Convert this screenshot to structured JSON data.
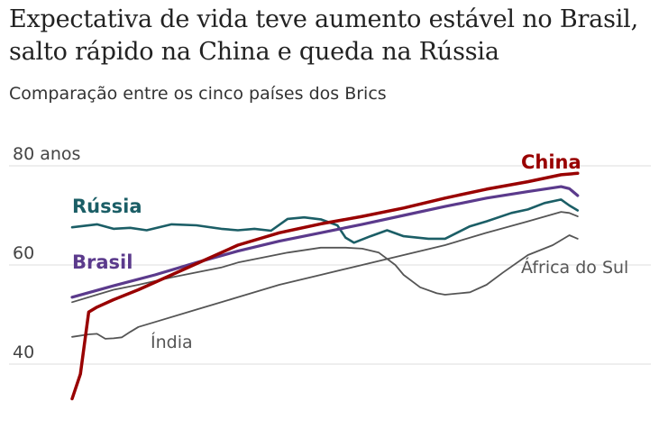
{
  "title": "Expectativa de vida teve aumento estável no Brasil, salto rápido na China e queda na Rússia",
  "subtitle": "Comparação entre os cinco países dos Brics",
  "chart_data": {
    "type": "line",
    "title": "Expectativa de vida teve aumento estável no Brasil, salto rápido na China e queda na Rússia",
    "subtitle": "Comparação entre os cinco países dos Brics",
    "ylim": [
      30,
      82
    ],
    "xlim": [
      1960,
      2022
    ],
    "yticks": [
      {
        "value": 80,
        "label": "80 anos"
      },
      {
        "value": 60,
        "label": "60"
      },
      {
        "value": 40,
        "label": "40"
      }
    ],
    "grid": true,
    "legend": "inline labels",
    "series": [
      {
        "name": "China",
        "color": "#990000",
        "width": 3.5,
        "x": [
          1960,
          1961,
          1962,
          1963,
          1965,
          1968,
          1972,
          1976,
          1980,
          1985,
          1990,
          1995,
          2000,
          2005,
          2010,
          2015,
          2019,
          2021
        ],
        "y": [
          33,
          38,
          50.5,
          51.5,
          53,
          55,
          58,
          61,
          64,
          66.5,
          68.3,
          69.8,
          71.5,
          73.5,
          75.3,
          76.8,
          78.2,
          78.5
        ]
      },
      {
        "name": "Brasil",
        "color": "#5b3a8c",
        "width": 3.2,
        "x": [
          1960,
          1965,
          1970,
          1975,
          1980,
          1985,
          1990,
          1995,
          2000,
          2005,
          2010,
          2015,
          2019,
          2020,
          2021
        ],
        "y": [
          53.5,
          55.8,
          58,
          60.5,
          62.8,
          64.8,
          66.5,
          68.2,
          70,
          71.8,
          73.5,
          74.8,
          75.8,
          75.4,
          74
        ]
      },
      {
        "name": "Rússia",
        "color": "#1b5e66",
        "width": 2.6,
        "x": [
          1960,
          1963,
          1965,
          1967,
          1969,
          1972,
          1975,
          1978,
          1980,
          1982,
          1984,
          1986,
          1988,
          1990,
          1992,
          1993,
          1994,
          1996,
          1998,
          2000,
          2003,
          2005,
          2008,
          2010,
          2013,
          2015,
          2017,
          2019,
          2020,
          2021
        ],
        "y": [
          67.6,
          68.2,
          67.3,
          67.5,
          67,
          68.2,
          68,
          67.3,
          67,
          67.3,
          66.9,
          69.3,
          69.6,
          69.2,
          68,
          65.5,
          64.5,
          65.8,
          67,
          65.8,
          65.3,
          65.3,
          67.8,
          68.8,
          70.5,
          71.2,
          72.5,
          73.2,
          72,
          71
        ]
      },
      {
        "name": "África do Sul",
        "color": "#555555",
        "width": 1.8,
        "x": [
          1960,
          1963,
          1965,
          1968,
          1972,
          1975,
          1978,
          1980,
          1983,
          1986,
          1990,
          1993,
          1995,
          1997,
          1999,
          2000,
          2002,
          2004,
          2005,
          2008,
          2010,
          2012,
          2015,
          2018,
          2019,
          2020,
          2021
        ],
        "y": [
          52.5,
          54,
          55,
          56,
          57.5,
          58.5,
          59.5,
          60.5,
          61.5,
          62.5,
          63.5,
          63.5,
          63.3,
          62.5,
          60,
          58,
          55.5,
          54.3,
          54,
          54.5,
          56,
          58.5,
          62,
          64,
          65,
          66,
          65.3
        ]
      },
      {
        "name": "Índia",
        "color": "#555555",
        "width": 1.8,
        "x": [
          1960,
          1962,
          1963,
          1964,
          1965,
          1966,
          1967,
          1968,
          1970,
          1975,
          1980,
          1985,
          1990,
          1995,
          2000,
          2005,
          2010,
          2015,
          2019,
          2020,
          2021
        ],
        "y": [
          45.5,
          46,
          46.1,
          45.1,
          45.2,
          45.4,
          46.5,
          47.5,
          48.5,
          51,
          53.5,
          56,
          58,
          60,
          62,
          64,
          66.5,
          68.8,
          70.7,
          70.5,
          69.8
        ]
      }
    ],
    "labels": [
      {
        "text": "China",
        "series": "China"
      },
      {
        "text": "Rússia",
        "series": "Rússia"
      },
      {
        "text": "Brasil",
        "series": "Brasil"
      },
      {
        "text": "África do Sul",
        "series": "África do Sul"
      },
      {
        "text": "Índia",
        "series": "Índia"
      }
    ]
  }
}
